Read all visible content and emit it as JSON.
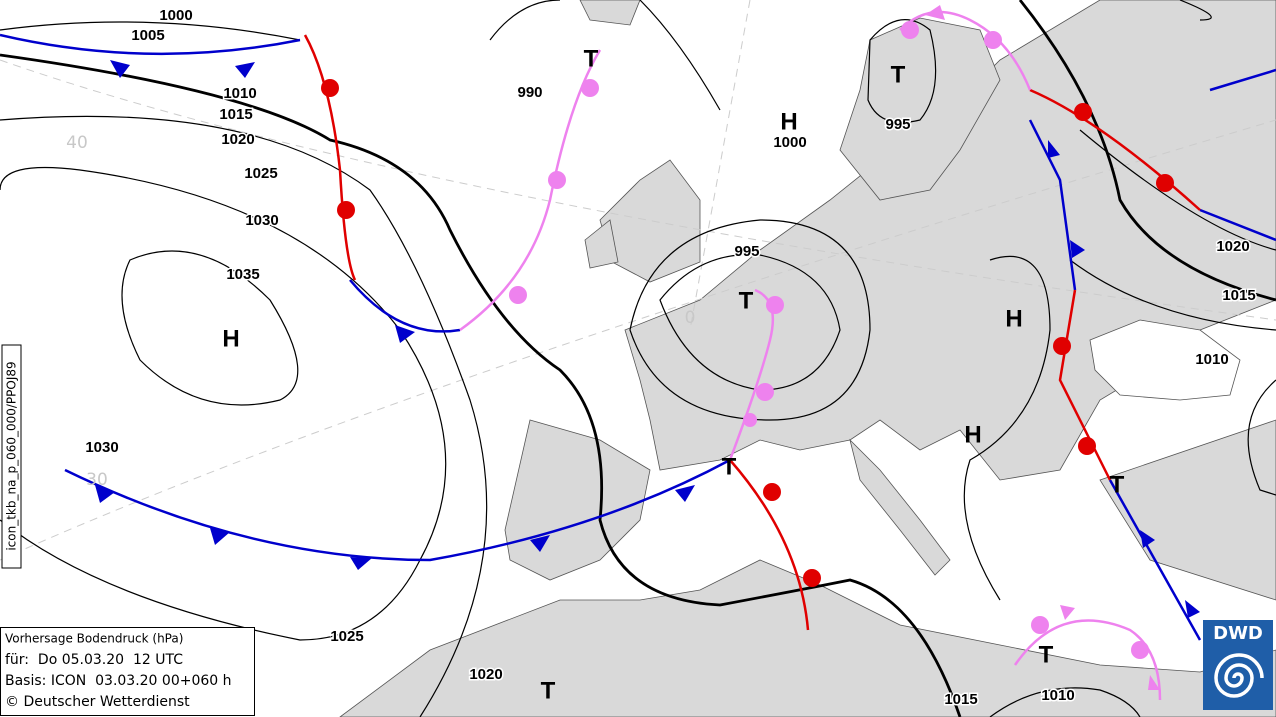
{
  "isobar_labels": [
    1000,
    1005,
    1010,
    1015,
    1020,
    1025,
    1030,
    1035,
    990,
    1000,
    995,
    995,
    1030,
    1025,
    1020,
    1015,
    1010,
    1020,
    1015,
    1010
  ],
  "pressure_centers": [
    "T",
    "H",
    "T",
    "H",
    "T",
    "H",
    "H",
    "T",
    "T",
    "T",
    "T"
  ],
  "grid_labels": [
    "40",
    "30",
    "0"
  ],
  "product_code": "icon_tkb_na_p_060_000/PPOJ89",
  "info_box": {
    "title": "Vorhersage Bodendruck (hPa)",
    "valid": "für:  Do 05.03.20  12 UTC",
    "basis": "Basis: ICON  03.03.20 00+060 h",
    "copyright": "© Deutscher Wetterdienst"
  },
  "logo": "DWD"
}
